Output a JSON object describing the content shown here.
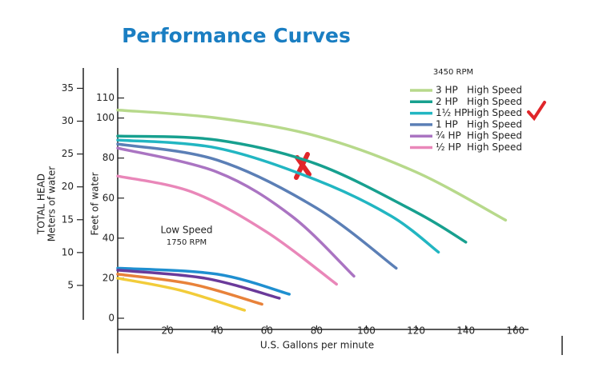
{
  "chart_data": {
    "type": "line",
    "title": "Performance Curves",
    "x_label": "U.S. Gallons per minute",
    "y_label": "Feet of water",
    "y2_label": "TOTAL HEAD",
    "y2_sublabel": "Meters of water",
    "rpm_note": "3450 RPM",
    "low_speed_note": "Low Speed",
    "low_speed_rpm": "1750 RPM",
    "xlim": [
      0,
      162
    ],
    "xticks": [
      20,
      40,
      60,
      80,
      100,
      120,
      140,
      160
    ],
    "ylim": [
      0,
      125
    ],
    "yticks": [
      0,
      20,
      40,
      60,
      80,
      100,
      110
    ],
    "y2lim": [
      0,
      38.1
    ],
    "y2ticks": [
      5,
      10,
      15,
      20,
      25,
      30,
      35
    ],
    "series": [
      {
        "name": "3 HP",
        "label": "High Speed",
        "color": "#b7d98b",
        "x": [
          0,
          40,
          80,
          120,
          156
        ],
        "values": [
          104,
          100,
          91,
          73,
          49
        ]
      },
      {
        "name": "2 HP",
        "label": "High Speed",
        "color": "#17a08f",
        "x": [
          0,
          40,
          80,
          120,
          140
        ],
        "values": [
          91,
          89,
          77,
          53,
          38
        ]
      },
      {
        "name": "1½ HP",
        "label": "High Speed",
        "color": "#22b6c2",
        "x": [
          0,
          40,
          80,
          110,
          129
        ],
        "values": [
          89,
          85,
          69,
          51,
          33
        ]
      },
      {
        "name": "1 HP",
        "label": "High Speed",
        "color": "#5b7fb6",
        "x": [
          0,
          40,
          80,
          112
        ],
        "values": [
          87,
          79,
          55,
          25
        ]
      },
      {
        "name": "¾ HP",
        "label": "High Speed",
        "color": "#aa74c2",
        "x": [
          0,
          40,
          70,
          95
        ],
        "values": [
          85,
          73,
          51,
          21
        ]
      },
      {
        "name": "½ HP",
        "label": "High Speed",
        "color": "#e987b9",
        "x": [
          0,
          30,
          60,
          88
        ],
        "values": [
          71,
          63,
          43,
          17
        ]
      },
      {
        "color": "#1f8fd0",
        "x": [
          0,
          40,
          69
        ],
        "values": [
          25,
          22,
          12
        ]
      },
      {
        "color": "#6a3a9a",
        "x": [
          0,
          35,
          65
        ],
        "values": [
          24,
          20,
          10
        ]
      },
      {
        "color": "#e8823a",
        "x": [
          0,
          30,
          58
        ],
        "values": [
          22,
          17,
          7
        ]
      },
      {
        "color": "#f2cc3a",
        "x": [
          0,
          25,
          51
        ],
        "values": [
          20,
          14,
          4
        ]
      }
    ]
  }
}
